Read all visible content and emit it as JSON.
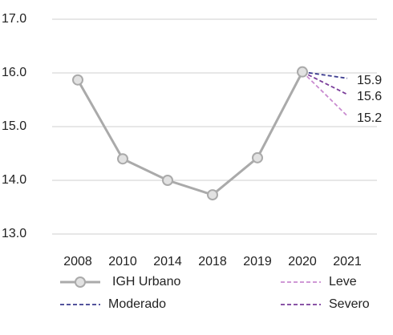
{
  "chart_data": {
    "type": "line",
    "categories": [
      "2008",
      "2010",
      "2014",
      "2018",
      "2019",
      "2020",
      "2021"
    ],
    "series": [
      {
        "name": "IGH Urbano",
        "color": "#aaaaaa",
        "values": [
          15.87,
          14.4,
          14.0,
          13.73,
          14.42,
          16.02,
          null
        ]
      },
      {
        "name": "Leve",
        "color": "#c98bd0",
        "dashed": true,
        "values": [
          null,
          null,
          null,
          null,
          null,
          16.02,
          15.2
        ]
      },
      {
        "name": "Moderado",
        "color": "#3b3b8f",
        "dashed": true,
        "values": [
          null,
          null,
          null,
          null,
          null,
          16.02,
          15.9
        ]
      },
      {
        "name": "Severo",
        "color": "#7a3d9a",
        "dashed": true,
        "values": [
          null,
          null,
          null,
          null,
          null,
          16.02,
          15.6
        ]
      }
    ],
    "ylim": [
      13.0,
      17.0
    ],
    "yticks": [
      {
        "value": 13,
        "label": "13.0"
      },
      {
        "value": 14,
        "label": "14.0"
      },
      {
        "value": 15,
        "label": "15.0"
      },
      {
        "value": 16,
        "label": "16.0"
      },
      {
        "value": 17,
        "label": "17.0"
      }
    ],
    "grid": true
  }
}
